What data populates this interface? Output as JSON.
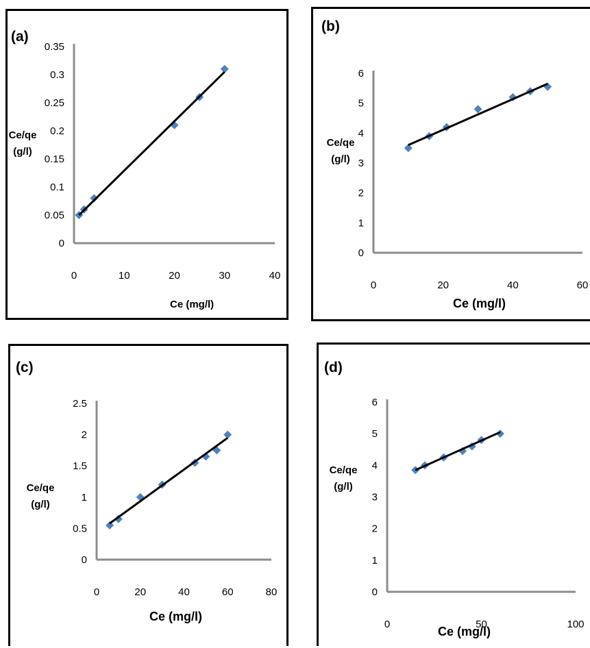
{
  "chart_data": [
    {
      "type": "scatter",
      "panel_label": "(a)",
      "xlabel": "Ce (mg/l)",
      "ylabel_line1": "Ce/qe",
      "ylabel_line2": "(g/l)",
      "xlim": [
        0,
        40
      ],
      "ylim": [
        0,
        0.35
      ],
      "xticks": [
        "0",
        "10",
        "20",
        "30",
        "40"
      ],
      "yticks": [
        "0",
        "0.05",
        "0.1",
        "0.15",
        "0.2",
        "0.25",
        "0.3",
        "0.35"
      ],
      "grid": false,
      "marker_color": "#4F81BD",
      "series": [
        {
          "x": [
            1,
            2,
            4,
            20,
            25,
            30
          ],
          "y": [
            0.05,
            0.06,
            0.08,
            0.21,
            0.26,
            0.31
          ]
        }
      ],
      "trendline": {
        "x": [
          1,
          30
        ],
        "y": [
          0.05,
          0.305
        ]
      }
    },
    {
      "type": "scatter",
      "panel_label": "(b)",
      "xlabel": "Ce (mg/l)",
      "ylabel_line1": "Ce/qe",
      "ylabel_line2": "(g/l)",
      "xlim": [
        0,
        60
      ],
      "ylim": [
        0,
        6
      ],
      "xticks": [
        "0",
        "20",
        "40",
        "60"
      ],
      "yticks": [
        "0",
        "1",
        "2",
        "3",
        "4",
        "5",
        "6"
      ],
      "grid": false,
      "marker_color": "#4F81BD",
      "series": [
        {
          "x": [
            10,
            16,
            21,
            30,
            40,
            45,
            50
          ],
          "y": [
            3.5,
            3.9,
            4.2,
            4.8,
            5.2,
            5.4,
            5.55
          ]
        }
      ],
      "trendline": {
        "x": [
          10,
          50
        ],
        "y": [
          3.6,
          5.65
        ]
      }
    },
    {
      "type": "scatter",
      "panel_label": "(c)",
      "xlabel": "Ce (mg/l)",
      "ylabel_line1": "Ce/qe",
      "ylabel_line2": "(g/l)",
      "xlim": [
        0,
        80
      ],
      "ylim": [
        0,
        2.5
      ],
      "xticks": [
        "0",
        "20",
        "40",
        "60",
        "80"
      ],
      "yticks": [
        "0",
        "0.5",
        "1",
        "1.5",
        "2",
        "2.5"
      ],
      "grid": false,
      "marker_color": "#4F81BD",
      "series": [
        {
          "x": [
            6,
            10,
            20,
            30,
            45,
            50,
            55,
            60
          ],
          "y": [
            0.55,
            0.65,
            1.0,
            1.2,
            1.55,
            1.65,
            1.75,
            2.0
          ]
        }
      ],
      "trendline": {
        "x": [
          6,
          60
        ],
        "y": [
          0.58,
          1.95
        ]
      }
    },
    {
      "type": "scatter",
      "panel_label": "(d)",
      "xlabel": "Ce (mg/l)",
      "ylabel_line1": "Ce/qe",
      "ylabel_line2": "(g/l)",
      "xlim": [
        0,
        100
      ],
      "ylim": [
        0,
        6
      ],
      "xticks": [
        "0",
        "50",
        "100"
      ],
      "yticks": [
        "0",
        "1",
        "2",
        "3",
        "4",
        "5",
        "6"
      ],
      "grid": false,
      "marker_color": "#4F81BD",
      "series": [
        {
          "x": [
            15,
            20,
            30,
            40,
            45,
            50,
            60
          ],
          "y": [
            3.85,
            4.0,
            4.25,
            4.45,
            4.6,
            4.8,
            5.0
          ]
        }
      ],
      "trendline": {
        "x": [
          15,
          60
        ],
        "y": [
          3.85,
          5.05
        ]
      }
    }
  ]
}
